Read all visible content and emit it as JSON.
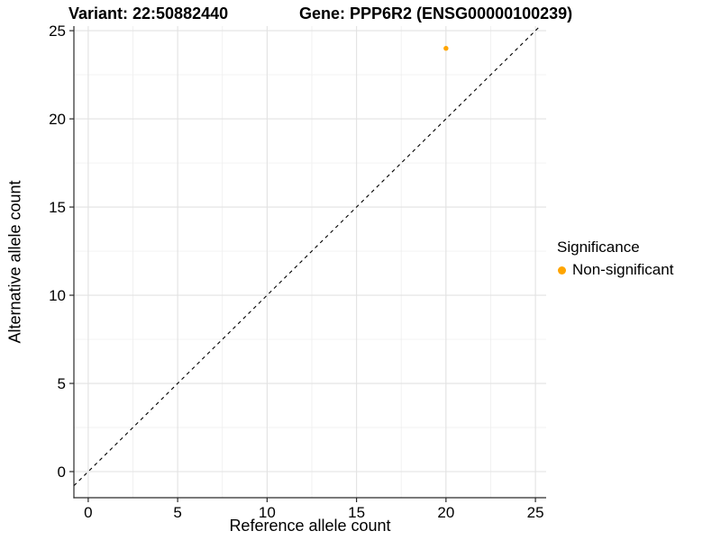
{
  "titles": {
    "variant": "Variant: 22:50882440",
    "gene": "Gene: PPP6R2 (ENSG00000100239)"
  },
  "chart_data": {
    "type": "scatter",
    "title": "Variant: 22:50882440 / Gene: PPP6R2 (ENSG00000100239)",
    "xlabel": "Reference allele count",
    "ylabel": "Alternative allele count",
    "xlim": [
      -0.8,
      25.6
    ],
    "ylim": [
      -1.48,
      25.26
    ],
    "x_ticks": [
      0,
      5,
      10,
      15,
      20,
      25
    ],
    "y_ticks": [
      0,
      5,
      10,
      15,
      20,
      25
    ],
    "x_minor_ticks": [
      2.5,
      7.5,
      12.5,
      17.5,
      22.5
    ],
    "y_minor_ticks": [
      2.5,
      7.5,
      12.5,
      17.5,
      22.5
    ],
    "grid": true,
    "points": [
      {
        "x": 20,
        "y": 24,
        "series": "Non-significant"
      }
    ],
    "identity_line": {
      "slope": 1,
      "intercept": 0,
      "style": "dashed",
      "color": "#000000"
    },
    "legend": {
      "title": "Significance",
      "position": "right",
      "items": [
        {
          "label": "Non-significant",
          "color": "#FFA500",
          "marker": "circle"
        }
      ]
    },
    "colors": {
      "point": "#FFA500",
      "grid_major": "#E2E2E2",
      "grid_minor": "#F0F0F0",
      "axis": "#2a2a2a",
      "text": "#000000",
      "background": "#FFFFFF"
    }
  }
}
